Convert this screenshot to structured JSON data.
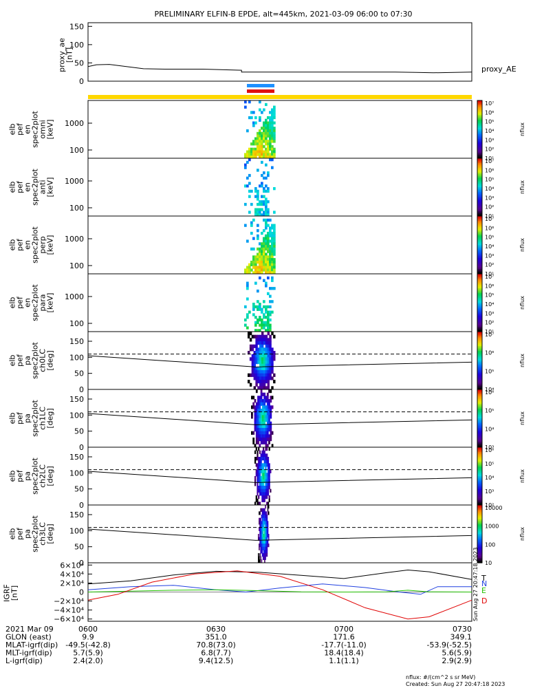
{
  "title": "PRELIMINARY ELFIN-B EPDE, alt=445km, 2021-03-09 06:00 to 07:30",
  "colors": {
    "yellow_bar": "#ffd700",
    "blue_bar": "#1e90ff",
    "red_bar": "#e01010",
    "T": "#000000",
    "N": "#1f3fe0",
    "E": "#22c000",
    "D": "#e00000",
    "axis": "#000000"
  },
  "proxy_ae": {
    "ylabel": "proxy_ae\n[nT]",
    "legend": "proxy_AE",
    "yticks": [
      "150",
      "100",
      "50",
      "0"
    ],
    "ylim": [
      0,
      160
    ],
    "x": [
      0,
      0.025,
      0.06,
      0.1,
      0.14,
      0.2,
      0.3,
      0.4,
      0.4,
      0.5,
      0.6,
      0.7,
      0.8,
      0.85,
      0.9,
      1.0
    ],
    "y": [
      40,
      45,
      46,
      40,
      34,
      33,
      33,
      30,
      25,
      25,
      25,
      25,
      25,
      24,
      23,
      25
    ]
  },
  "spec_panels": [
    {
      "ylabel": "elb\npef\nen\nspec2plot\nomni\n[keV]",
      "yticks": [
        "1000",
        "100"
      ],
      "cb_label": "nflux",
      "cb_ticks": [
        "10⁷",
        "10⁶",
        "10⁵",
        "10⁴",
        "10³",
        "10²",
        "10¹"
      ]
    },
    {
      "ylabel": "elb\npef\nen\nspec2plot\nanti\n[keV]",
      "yticks": [
        "1000",
        "100"
      ],
      "cb_label": "nflux",
      "cb_ticks": [
        "10⁷",
        "10⁶",
        "10⁵",
        "10⁴",
        "10³",
        "10²",
        "10¹"
      ]
    },
    {
      "ylabel": "elb\npef\nen\nspec2plot\nperp\n[keV]",
      "yticks": [
        "1000",
        "100"
      ],
      "cb_label": "nflux",
      "cb_ticks": [
        "10⁷",
        "10⁶",
        "10⁵",
        "10⁴",
        "10³",
        "10²",
        "10¹"
      ]
    },
    {
      "ylabel": "elb\npef\nen\nspec2plot\npara\n[keV]",
      "yticks": [
        "1000",
        "100"
      ],
      "cb_label": "nflux",
      "cb_ticks": [
        "10⁷",
        "10⁶",
        "10⁵",
        "10⁴",
        "10³",
        "10²",
        "10¹"
      ]
    }
  ],
  "pa_panels": [
    {
      "ylabel": "elb\npef\npa\nspec2plot\nch0LC\n[deg]",
      "yticks": [
        "150",
        "100",
        "50",
        "0"
      ],
      "cb_label": "nflux",
      "cb_ticks": [
        "10⁷",
        "10⁶",
        "10⁵",
        "10⁴"
      ]
    },
    {
      "ylabel": "elb\npef\npa\nspec2plot\nch1LC\n[deg]",
      "yticks": [
        "150",
        "100",
        "50",
        "0"
      ],
      "cb_label": "nflux",
      "cb_ticks": [
        "10⁶",
        "10⁵",
        "10⁴",
        "10³"
      ]
    },
    {
      "ylabel": "elb\npef\npa\nspec2plot\nch2LC\n[deg]",
      "yticks": [
        "150",
        "100",
        "50",
        "0"
      ],
      "cb_label": "nflux",
      "cb_ticks": [
        "10⁶",
        "10⁵",
        "10⁴",
        "10³",
        "10²"
      ]
    },
    {
      "ylabel": "elb\npef\npa\nspec2plot\nch3LC\n[deg]",
      "yticks": [
        "150",
        "100",
        "50",
        "0"
      ],
      "cb_label": "nflux",
      "cb_ticks": [
        "10000",
        "1000",
        "100",
        "10"
      ]
    }
  ],
  "chart_data": {
    "type": "line",
    "title": "PRELIMINARY ELFIN-B EPDE, alt=445km, 2021-03-09 06:00 to 07:30",
    "xlabel_ticks": [
      "0600",
      "0630",
      "0700",
      "0730"
    ],
    "science_zone_minutes": [
      38,
      44
    ],
    "proxy_ae": {
      "ylim": [
        0,
        160
      ],
      "x_min": [
        0,
        2,
        5,
        9,
        13,
        18,
        27,
        36,
        36,
        45,
        54,
        63,
        72,
        77,
        81,
        90
      ],
      "y_nT": [
        40,
        45,
        46,
        40,
        34,
        33,
        33,
        30,
        25,
        25,
        25,
        25,
        25,
        24,
        23,
        25
      ]
    },
    "igrf": {
      "ylabel": "IGRF\n[nT]",
      "yticks": [
        "6×10⁴",
        "4×10⁴",
        "2×10⁴",
        "0",
        "−2×10⁴",
        "−4×10⁴",
        "−6×10⁴"
      ],
      "ylim": [
        -65000,
        65000
      ],
      "series": [
        {
          "name": "T",
          "x_min": [
            0,
            10,
            20,
            30,
            40,
            50,
            60,
            70,
            75,
            80,
            90
          ],
          "y_nT": [
            18000,
            25000,
            38000,
            46000,
            44000,
            37000,
            30000,
            43000,
            49000,
            45000,
            28000
          ]
        },
        {
          "name": "N",
          "x_min": [
            0,
            10,
            20,
            30,
            37,
            45,
            55,
            65,
            73,
            78,
            82,
            90
          ],
          "y_nT": [
            5000,
            12000,
            15000,
            5000,
            0,
            9000,
            18000,
            10000,
            0,
            -5000,
            12000,
            12000
          ]
        },
        {
          "name": "E",
          "x_min": [
            0,
            10,
            20,
            30,
            40,
            50,
            60,
            70,
            75,
            80,
            90
          ],
          "y_nT": [
            0,
            2000,
            4000,
            5000,
            3000,
            500,
            0,
            500,
            4000,
            500,
            0
          ]
        },
        {
          "name": "D",
          "x_min": [
            0,
            7,
            15,
            25,
            35,
            45,
            55,
            65,
            75,
            80,
            90
          ],
          "y_nT": [
            -18000,
            -5000,
            22000,
            40000,
            47000,
            35000,
            5000,
            -35000,
            -60000,
            -55000,
            -18000
          ]
        }
      ]
    },
    "orbit_table": {
      "rows": [
        {
          "label": "2021 Mar 09",
          "values": [
            "0600",
            "0630",
            "0700",
            "0730"
          ]
        },
        {
          "label": "GLON (east)",
          "values": [
            "9.9",
            "351.0",
            "171.6",
            "349.1"
          ]
        },
        {
          "label": "MLAT-igrf(dip)",
          "values": [
            "-49.5(-42.8)",
            "70.8(73.0)",
            "-17.7(-11.0)",
            "-53.9(-52.5)"
          ]
        },
        {
          "label": "MLT-igrf(dip)",
          "values": [
            "5.7(5.9)",
            "6.8(7.7)",
            "18.4(18.4)",
            "5.6(5.9)"
          ]
        },
        {
          "label": "L-igrf(dip)",
          "values": [
            "2.4(2.0)",
            "9.4(12.5)",
            "1.1(1.1)",
            "2.9(2.9)"
          ]
        }
      ]
    }
  },
  "footer": {
    "units": "nflux: #/(cm^2 s sr MeV)",
    "created": "Created: Sun Aug 27 20:47:18 2023",
    "side_stamp": "Sun Aug 27 20:47:18 2023"
  },
  "igrf_legend": [
    "T",
    "N",
    "E",
    "D"
  ]
}
